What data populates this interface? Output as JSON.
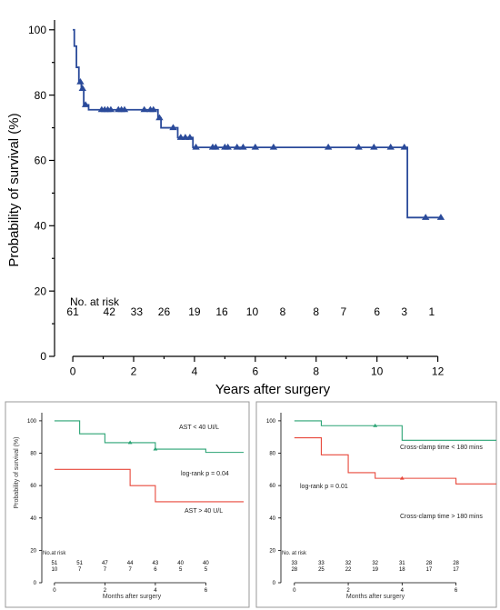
{
  "chart_data": [
    {
      "type": "line",
      "step": true,
      "xlabel": "Years after surgery",
      "ylabel": "Probability of survival (%)",
      "xlim": [
        -0.6,
        12.7
      ],
      "ylim": [
        0,
        103
      ],
      "xticks": [
        0,
        2,
        4,
        6,
        8,
        10,
        12
      ],
      "yticks": [
        0,
        20,
        40,
        60,
        80,
        100
      ],
      "grid": false,
      "line_color": "#2a4a9a",
      "marker": "triangle",
      "series": [
        {
          "steps": [
            [
              0,
              100
            ],
            [
              0.05,
              95
            ],
            [
              0.12,
              88.5
            ],
            [
              0.2,
              84
            ],
            [
              0.28,
              82
            ],
            [
              0.36,
              77
            ],
            [
              0.52,
              75.5
            ],
            [
              2.8,
              73
            ],
            [
              2.9,
              70
            ],
            [
              3.45,
              67
            ],
            [
              3.95,
              64
            ],
            [
              11.0,
              42.5
            ],
            [
              12.1,
              42.5
            ]
          ],
          "censored": [
            [
              0.25,
              84
            ],
            [
              0.32,
              82
            ],
            [
              0.42,
              77
            ],
            [
              0.95,
              75.5
            ],
            [
              1.05,
              75.5
            ],
            [
              1.15,
              75.5
            ],
            [
              1.25,
              75.5
            ],
            [
              1.5,
              75.5
            ],
            [
              1.6,
              75.5
            ],
            [
              1.7,
              75.5
            ],
            [
              2.35,
              75.5
            ],
            [
              2.55,
              75.5
            ],
            [
              2.65,
              75.5
            ],
            [
              2.85,
              73
            ],
            [
              3.3,
              70
            ],
            [
              3.55,
              67
            ],
            [
              3.7,
              67
            ],
            [
              3.85,
              67
            ],
            [
              4.05,
              64
            ],
            [
              4.6,
              64
            ],
            [
              4.7,
              64
            ],
            [
              5.0,
              64
            ],
            [
              5.1,
              64
            ],
            [
              5.4,
              64
            ],
            [
              5.6,
              64
            ],
            [
              6.0,
              64
            ],
            [
              6.6,
              64
            ],
            [
              8.4,
              64
            ],
            [
              9.4,
              64
            ],
            [
              9.9,
              64
            ],
            [
              10.45,
              64
            ],
            [
              10.9,
              64
            ],
            [
              11.6,
              42.5
            ],
            [
              12.1,
              42.5
            ]
          ]
        }
      ],
      "risk_label": "No. at risk",
      "risk_x": [
        0,
        1.2,
        2.1,
        3.0,
        4.0,
        4.9,
        5.9,
        6.9,
        8.0,
        8.9,
        10.0,
        10.9,
        11.8
      ],
      "risk_values": [
        "61",
        "42",
        "33",
        "26",
        "19",
        "16",
        "10",
        "8",
        "8",
        "7",
        "6",
        "3",
        "1"
      ]
    },
    {
      "type": "line",
      "step": true,
      "xlabel": "Months after surgery",
      "ylabel": "Probability of survival (%)",
      "xlim": [
        -0.5,
        7.5
      ],
      "ylim": [
        0,
        105
      ],
      "xticks": [
        0,
        2,
        4,
        6
      ],
      "yticks": [
        0,
        20,
        40,
        60,
        80,
        100
      ],
      "grid": false,
      "series": [
        {
          "name": "AST < 40 UI/L",
          "color": "#2aa374",
          "steps": [
            [
              0,
              100
            ],
            [
              1,
              92
            ],
            [
              2,
              86.5
            ],
            [
              4,
              82.5
            ],
            [
              6,
              80.5
            ],
            [
              7.5,
              80.5
            ]
          ],
          "censored": [
            [
              3,
              86.5
            ],
            [
              4,
              82.5
            ]
          ]
        },
        {
          "name": "AST > 40 U/L",
          "color": "#e8483b",
          "steps": [
            [
              0,
              70
            ],
            [
              3,
              60
            ],
            [
              4,
              50
            ],
            [
              7.5,
              50
            ]
          ],
          "censored": []
        }
      ],
      "annotation": "log-rank p = 0.04",
      "risk_label": "No.at risk",
      "risk_x": [
        0,
        1,
        2,
        3,
        4,
        5,
        6
      ],
      "risk_values": [
        [
          "51",
          "51",
          "47",
          "44",
          "43",
          "40",
          "40"
        ],
        [
          "10",
          "7",
          "7",
          "7",
          "6",
          "5",
          "5"
        ]
      ]
    },
    {
      "type": "line",
      "step": true,
      "xlabel": "Months after surgery",
      "ylabel": "",
      "xlim": [
        -0.5,
        7.5
      ],
      "ylim": [
        0,
        105
      ],
      "xticks": [
        0,
        2,
        4,
        6
      ],
      "yticks": [
        0,
        20,
        40,
        60,
        80,
        100
      ],
      "grid": false,
      "series": [
        {
          "name": "Cross-clamp time < 180 mins",
          "color": "#2aa374",
          "steps": [
            [
              0,
              100
            ],
            [
              1,
              97
            ],
            [
              4,
              88
            ],
            [
              7.5,
              88
            ]
          ],
          "censored": [
            [
              3,
              97
            ]
          ]
        },
        {
          "name": "Cross-clamp time > 180 mins",
          "color": "#e8483b",
          "steps": [
            [
              0,
              89.5
            ],
            [
              1,
              79
            ],
            [
              2,
              68
            ],
            [
              3,
              64.5
            ],
            [
              6,
              61
            ],
            [
              7.5,
              61
            ]
          ],
          "censored": [
            [
              4,
              64.5
            ]
          ]
        }
      ],
      "annotation": "log-rank p = 0.01",
      "risk_label": "No. at risk",
      "risk_x": [
        0,
        1,
        2,
        3,
        4,
        5,
        6
      ],
      "risk_values": [
        [
          "33",
          "33",
          "32",
          "32",
          "31",
          "28",
          "28"
        ],
        [
          "28",
          "25",
          "22",
          "19",
          "18",
          "17",
          "17"
        ]
      ]
    }
  ]
}
